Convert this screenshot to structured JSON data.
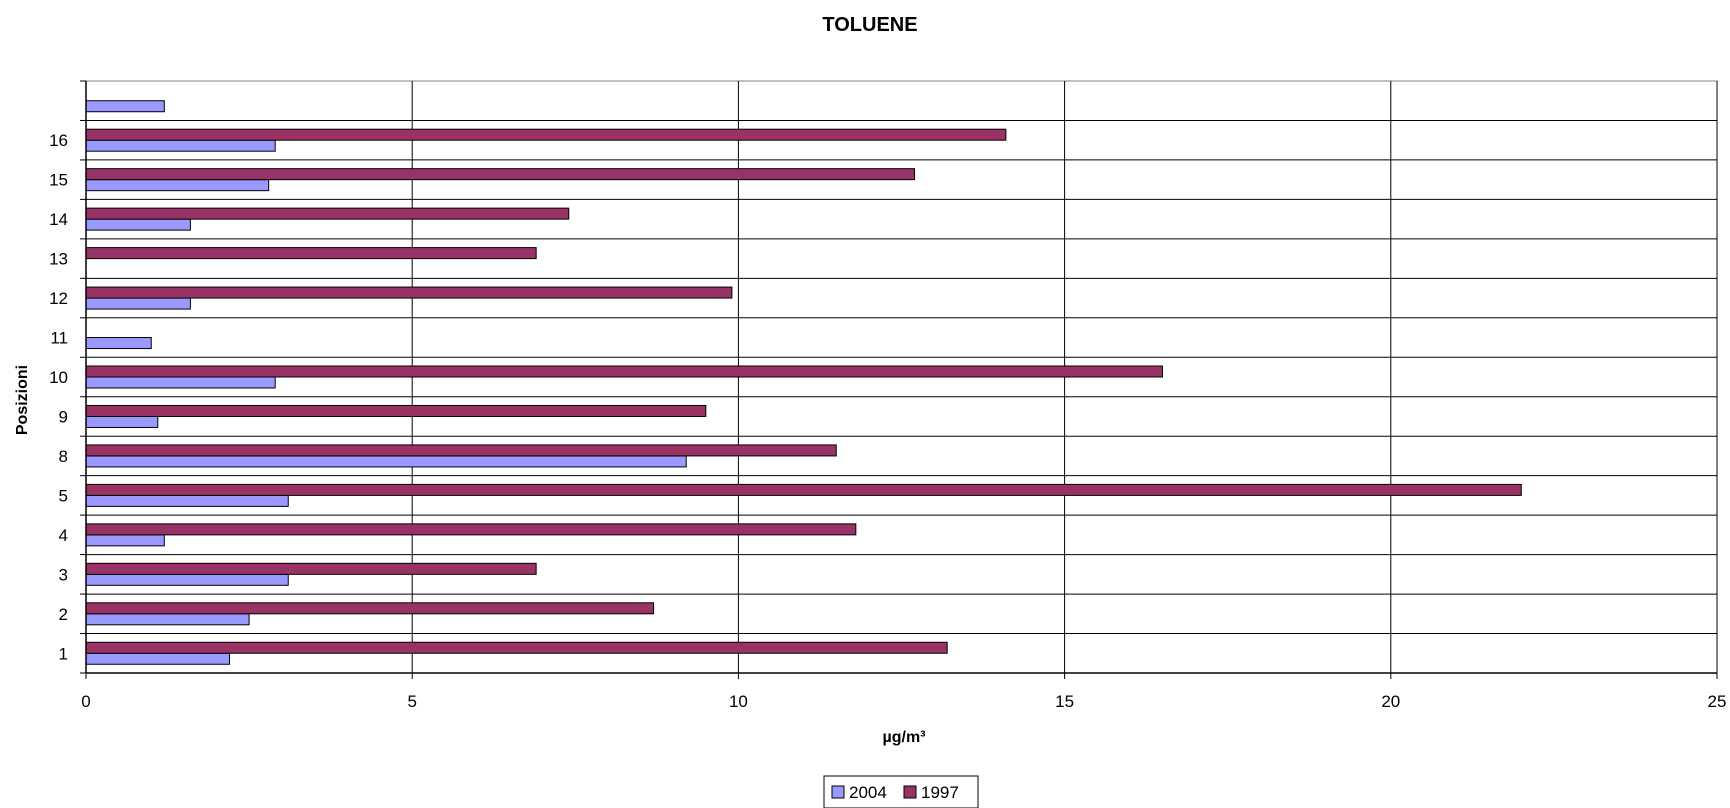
{
  "chart_data": {
    "type": "bar",
    "orientation": "horizontal",
    "title": "TOLUENE",
    "xlabel": "µg/m³",
    "ylabel": "Posizioni",
    "xlim": [
      0,
      25
    ],
    "x_ticks": [
      0,
      5,
      10,
      15,
      20,
      25
    ],
    "categories": [
      "1",
      "2",
      "3",
      "4",
      "5",
      "8",
      "9",
      "10",
      "11",
      "12",
      "13",
      "14",
      "15",
      "16",
      ""
    ],
    "series": [
      {
        "name": "2004",
        "color": "#9999ff",
        "values": [
          2.2,
          2.5,
          3.1,
          1.2,
          3.1,
          9.2,
          1.1,
          2.9,
          1.0,
          1.6,
          null,
          1.6,
          2.8,
          2.9,
          1.2
        ]
      },
      {
        "name": "1997",
        "color": "#993366",
        "values": [
          13.2,
          8.7,
          6.9,
          11.8,
          22.0,
          11.5,
          9.5,
          16.5,
          null,
          9.9,
          6.9,
          7.4,
          12.7,
          14.1,
          null
        ]
      }
    ],
    "grid": true,
    "legend_position": "bottom"
  }
}
